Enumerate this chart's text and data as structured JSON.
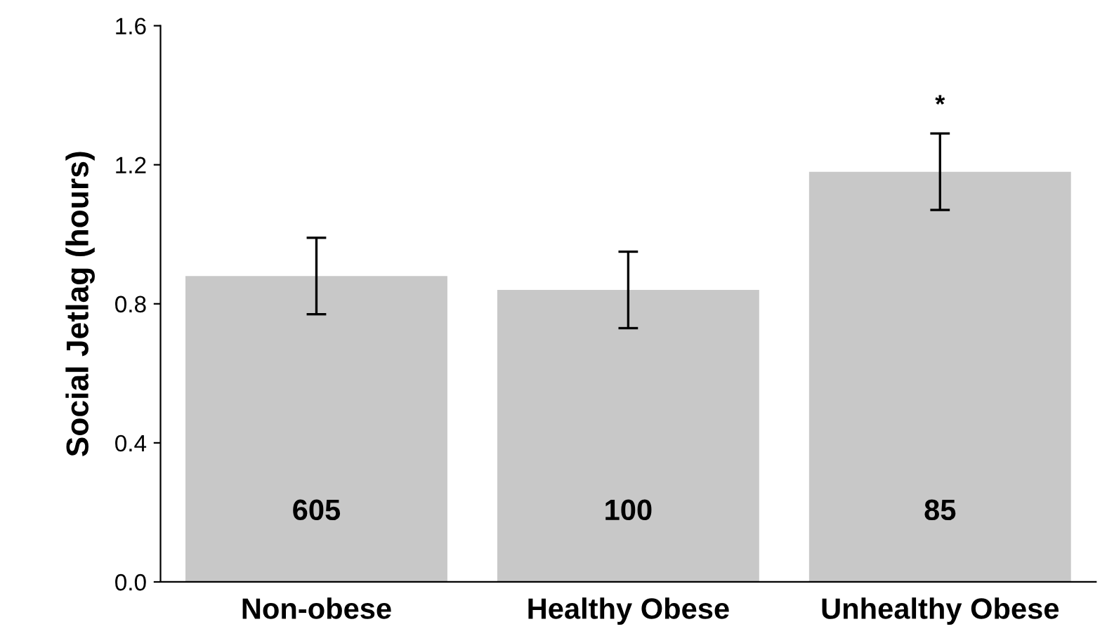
{
  "chart_data": {
    "type": "bar",
    "ylabel": "Social Jetlag (hours)",
    "categories": [
      "Non-obese",
      "Healthy Obese",
      "Unhealthy Obese"
    ],
    "values": [
      0.88,
      0.84,
      1.18
    ],
    "errors": [
      0.11,
      0.11,
      0.11
    ],
    "color": "#c8c8c8",
    "ylim": [
      0,
      1.6
    ],
    "yticks": [
      {
        "value": 0,
        "label": "0.0"
      },
      {
        "value": 0.4,
        "label": "0.4"
      },
      {
        "value": 0.8,
        "label": "0.8"
      },
      {
        "value": 1.2,
        "label": "1.2"
      },
      {
        "value": 1.6,
        "label": "1.6"
      }
    ],
    "grid": false,
    "annotations": [
      "605",
      "100",
      "85",
      "*"
    ]
  }
}
